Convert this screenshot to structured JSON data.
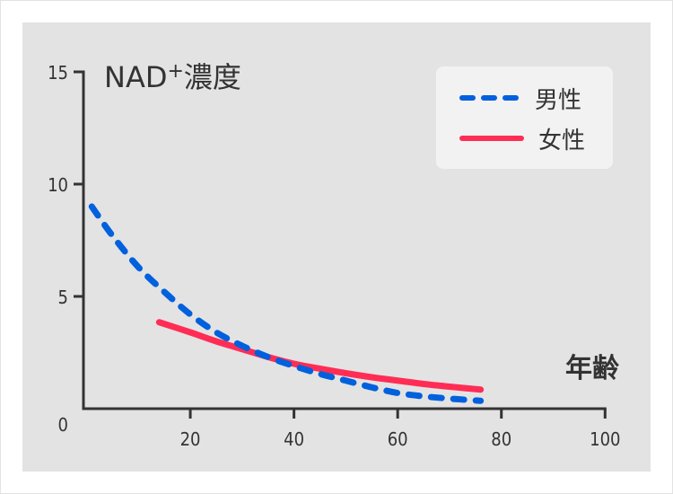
{
  "chart_data": {
    "type": "line",
    "title": "NAD⁺濃度",
    "title_main": "NAD",
    "title_sup": "+",
    "title_suffix": "濃度",
    "xlabel": "年齢",
    "ylabel": "NAD⁺濃度",
    "xlim": [
      0,
      100
    ],
    "ylim": [
      0,
      15
    ],
    "x_ticks": [
      20,
      40,
      60,
      80,
      100
    ],
    "y_ticks": [
      0,
      5,
      10,
      15
    ],
    "x_tick_labels": [
      "20",
      "40",
      "60",
      "80",
      "100"
    ],
    "y_tick_labels": [
      "0",
      "5",
      "10",
      "15"
    ],
    "grid": false,
    "legend_position": "upper right",
    "series": [
      {
        "name": "男性",
        "style": "dashed",
        "color": "#0060dd",
        "x": [
          1,
          5,
          10,
          15,
          20,
          25,
          30,
          35,
          40,
          45,
          50,
          55,
          60,
          65,
          70,
          76
        ],
        "values": [
          9.0,
          7.7,
          6.3,
          5.2,
          4.2,
          3.4,
          2.8,
          2.3,
          1.9,
          1.55,
          1.25,
          0.95,
          0.7,
          0.55,
          0.45,
          0.35
        ]
      },
      {
        "name": "女性",
        "style": "solid",
        "color": "#ff2d55",
        "x": [
          14,
          20,
          25,
          30,
          35,
          40,
          45,
          50,
          55,
          60,
          65,
          70,
          76
        ],
        "values": [
          3.85,
          3.4,
          3.0,
          2.65,
          2.3,
          2.0,
          1.78,
          1.58,
          1.4,
          1.25,
          1.1,
          0.98,
          0.85
        ]
      }
    ]
  },
  "legend": {
    "items": [
      {
        "label": "男性",
        "color": "#0060dd",
        "style": "dashed"
      },
      {
        "label": "女性",
        "color": "#ff2d55",
        "style": "solid"
      }
    ]
  },
  "colors": {
    "background": "#ffffff",
    "panel": "#e3e3e3",
    "legend_bg": "#f2f2f2",
    "axis": "#333333",
    "male": "#0060dd",
    "female": "#ff2d55"
  }
}
